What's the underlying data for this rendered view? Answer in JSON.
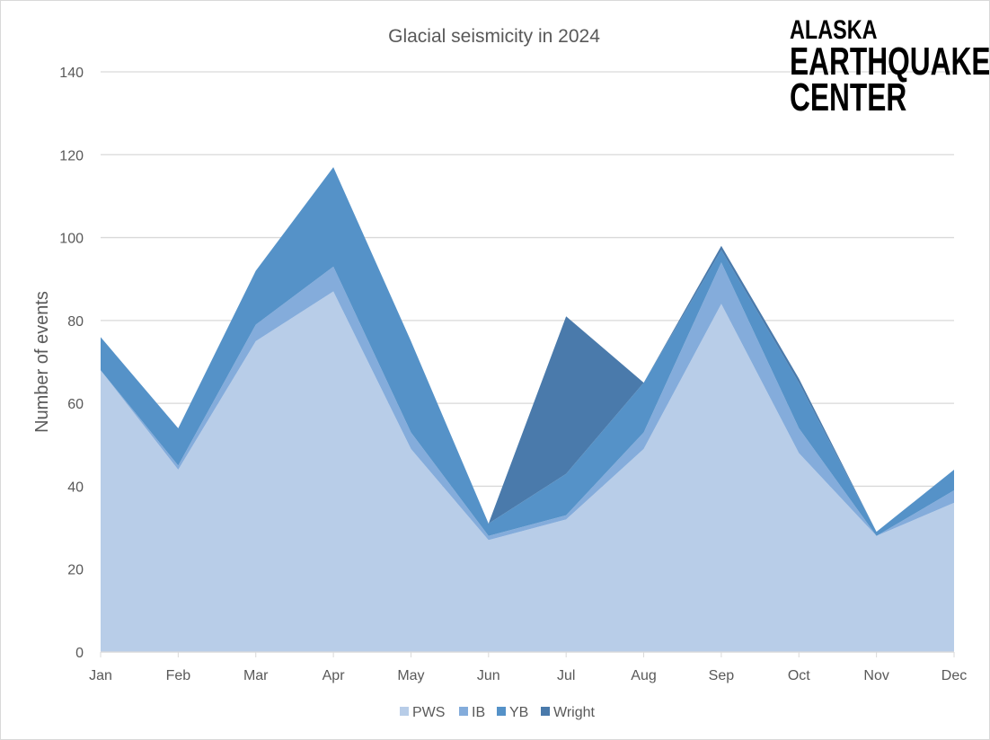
{
  "chart_data": {
    "type": "area",
    "stacked": true,
    "title": "Glacial seismicity in 2024",
    "xlabel": "",
    "ylabel": "Number of events",
    "ylim": [
      0,
      140
    ],
    "yticks": [
      0,
      20,
      40,
      60,
      80,
      100,
      120,
      140
    ],
    "grid": true,
    "legend_position": "bottom",
    "categories": [
      "Jan",
      "Feb",
      "Mar",
      "Apr",
      "May",
      "Jun",
      "Jul",
      "Aug",
      "Sep",
      "Oct",
      "Nov",
      "Dec"
    ],
    "series": [
      {
        "name": "PWS",
        "color": "#b8cde8",
        "values": [
          68,
          44,
          75,
          87,
          49,
          27,
          32,
          49,
          84,
          48,
          28,
          36
        ]
      },
      {
        "name": "IB",
        "color": "#84acdb",
        "values": [
          0,
          1,
          4,
          6,
          4,
          1,
          1,
          4,
          10,
          6,
          0,
          3
        ]
      },
      {
        "name": "YB",
        "color": "#5592c8",
        "values": [
          8,
          9,
          13,
          24,
          22,
          3,
          10,
          12,
          3,
          11,
          1,
          5
        ]
      },
      {
        "name": "Wright",
        "color": "#4a7aab",
        "values": [
          0,
          0,
          0,
          0,
          0,
          0,
          38,
          0,
          1,
          1,
          0,
          0
        ]
      }
    ]
  },
  "logo": {
    "line1": "ALASKA",
    "line2": "EARTHQUAKE",
    "line3": "CENTER"
  }
}
